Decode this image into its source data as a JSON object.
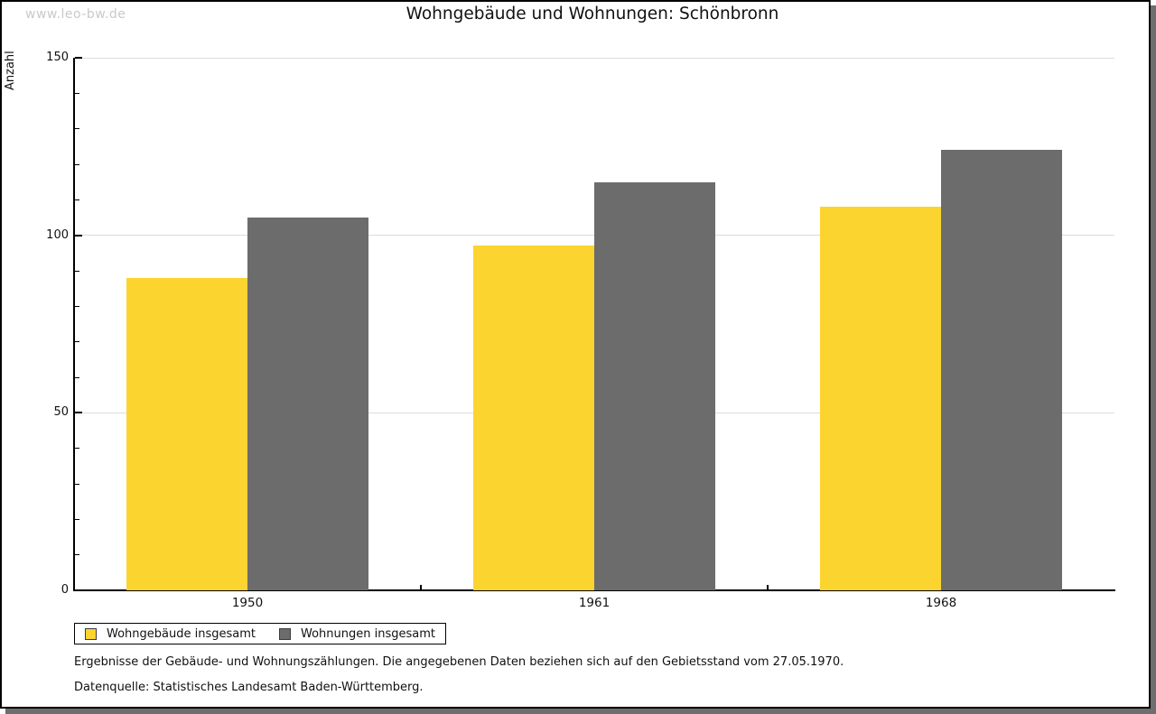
{
  "watermark": "www.leo-bw.de",
  "title": "Wohngebäude und Wohnungen: Schönbronn",
  "chart_data": {
    "type": "bar",
    "title": "Wohngebäude und Wohnungen: Schönbronn",
    "ylabel": "Anzahl",
    "xlabel": "",
    "categories": [
      "1950",
      "1961",
      "1968"
    ],
    "series": [
      {
        "name": "Wohngebäude insgesamt",
        "color": "#fcd42f",
        "values": [
          88,
          97,
          108
        ]
      },
      {
        "name": "Wohnungen insgesamt",
        "color": "#6c6c6c",
        "values": [
          105,
          115,
          124
        ]
      }
    ],
    "ylim": [
      0,
      150
    ],
    "yticks": [
      0,
      50,
      100,
      150
    ],
    "minor_tick_step": 10,
    "grid": true,
    "legend_position": "bottom-left"
  },
  "footer": {
    "line1": "Ergebnisse der Gebäude- und Wohnungszählungen. Die angegebenen Daten beziehen sich auf den Gebietsstand vom 27.05.1970.",
    "line2": "Datenquelle: Statistisches Landesamt Baden-Württemberg."
  },
  "colors": {
    "series_wohngebaeude": "#fcd42f",
    "series_wohnungen": "#6c6c6c",
    "gridline": "#dcdcdc",
    "axis": "#000000",
    "shadow": "#6e6e6e",
    "watermark": "#c9c9c9",
    "text": "#111111",
    "background": "#ffffff"
  }
}
